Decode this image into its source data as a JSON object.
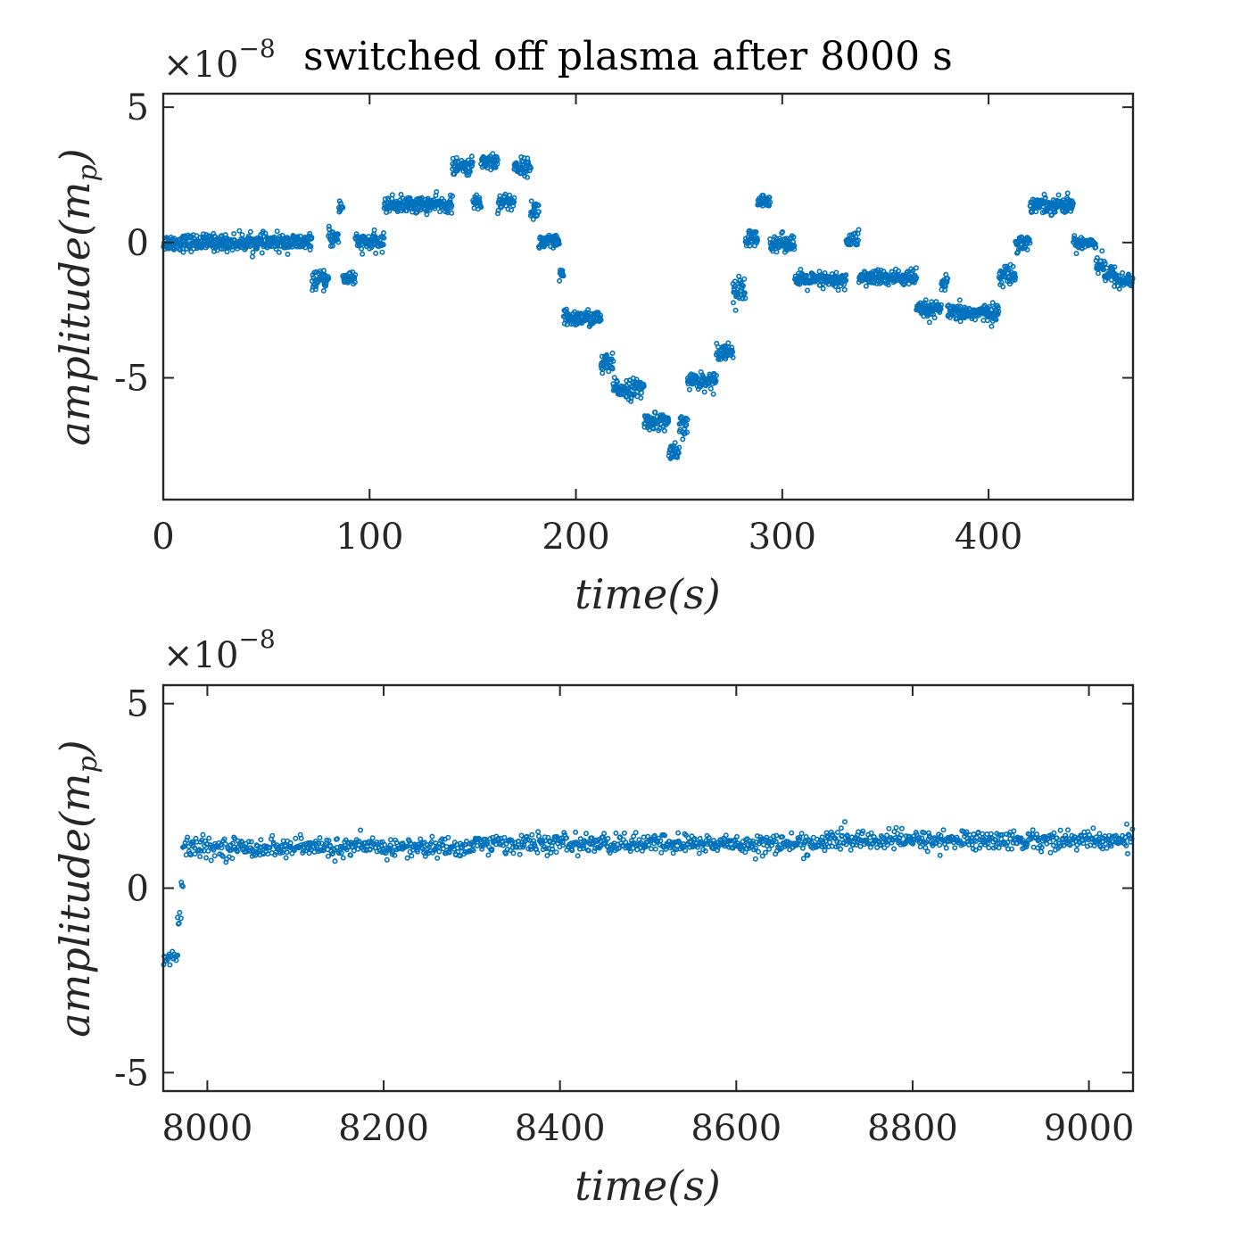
{
  "chart_data": [
    {
      "type": "scatter",
      "title": "switched off plasma after 8000 s",
      "multiplier": {
        "base": "×10",
        "exponent": "−8"
      },
      "xlabel": "time(s)",
      "ylabel": "amplitude(m_p)",
      "xlim": [
        0,
        470
      ],
      "ylim": [
        -9.5,
        5.5
      ],
      "xticks": [
        0,
        100,
        200,
        300,
        400
      ],
      "xticklabels": [
        "0",
        "100",
        "200",
        "300",
        "400"
      ],
      "yticks": [
        5,
        0,
        -5
      ],
      "yticklabels": [
        "5",
        "0",
        "-5"
      ],
      "color": "#0072BD",
      "series": [
        {
          "segments": [
            {
              "x0": 0,
              "x1": 72,
              "y": 0.0,
              "noise": 0.25
            },
            {
              "x0": 72,
              "x1": 80,
              "y": -1.4,
              "noise": 0.25
            },
            {
              "x0": 80,
              "x1": 85,
              "y": 0.2,
              "noise": 0.3
            },
            {
              "x0": 85,
              "x1": 87,
              "y": 1.3,
              "noise": 0.2
            },
            {
              "x0": 87,
              "x1": 93,
              "y": -1.3,
              "noise": 0.25
            },
            {
              "x0": 93,
              "x1": 107,
              "y": 0.0,
              "noise": 0.25
            },
            {
              "x0": 107,
              "x1": 140,
              "y": 1.4,
              "noise": 0.25
            },
            {
              "x0": 140,
              "x1": 150,
              "y": 2.8,
              "noise": 0.25
            },
            {
              "x0": 150,
              "x1": 154,
              "y": 1.5,
              "noise": 0.25
            },
            {
              "x0": 154,
              "x1": 162,
              "y": 3.0,
              "noise": 0.3
            },
            {
              "x0": 162,
              "x1": 170,
              "y": 1.5,
              "noise": 0.25
            },
            {
              "x0": 170,
              "x1": 178,
              "y": 2.8,
              "noise": 0.25
            },
            {
              "x0": 178,
              "x1": 182,
              "y": 1.2,
              "noise": 0.3
            },
            {
              "x0": 182,
              "x1": 192,
              "y": 0.0,
              "noise": 0.25
            },
            {
              "x0": 192,
              "x1": 194,
              "y": -1.2,
              "noise": 0.2
            },
            {
              "x0": 194,
              "x1": 212,
              "y": -2.8,
              "noise": 0.25
            },
            {
              "x0": 212,
              "x1": 218,
              "y": -4.5,
              "noise": 0.3
            },
            {
              "x0": 218,
              "x1": 233,
              "y": -5.4,
              "noise": 0.3
            },
            {
              "x0": 233,
              "x1": 245,
              "y": -6.6,
              "noise": 0.25
            },
            {
              "x0": 245,
              "x1": 250,
              "y": -7.8,
              "noise": 0.3
            },
            {
              "x0": 250,
              "x1": 254,
              "y": -6.8,
              "noise": 0.3
            },
            {
              "x0": 254,
              "x1": 268,
              "y": -5.1,
              "noise": 0.25
            },
            {
              "x0": 268,
              "x1": 276,
              "y": -4.0,
              "noise": 0.25
            },
            {
              "x0": 276,
              "x1": 282,
              "y": -1.8,
              "noise": 0.4
            },
            {
              "x0": 282,
              "x1": 288,
              "y": 0.1,
              "noise": 0.3
            },
            {
              "x0": 288,
              "x1": 294,
              "y": 1.5,
              "noise": 0.2
            },
            {
              "x0": 294,
              "x1": 306,
              "y": 0.0,
              "noise": 0.25
            },
            {
              "x0": 306,
              "x1": 331,
              "y": -1.4,
              "noise": 0.25
            },
            {
              "x0": 331,
              "x1": 337,
              "y": 0.1,
              "noise": 0.25
            },
            {
              "x0": 337,
              "x1": 365,
              "y": -1.3,
              "noise": 0.25
            },
            {
              "x0": 365,
              "x1": 377,
              "y": -2.5,
              "noise": 0.25
            },
            {
              "x0": 377,
              "x1": 380,
              "y": -1.5,
              "noise": 0.2
            },
            {
              "x0": 380,
              "x1": 405,
              "y": -2.6,
              "noise": 0.25
            },
            {
              "x0": 405,
              "x1": 413,
              "y": -1.2,
              "noise": 0.3
            },
            {
              "x0": 413,
              "x1": 420,
              "y": 0.0,
              "noise": 0.25
            },
            {
              "x0": 420,
              "x1": 441,
              "y": 1.4,
              "noise": 0.25
            },
            {
              "x0": 441,
              "x1": 452,
              "y": 0.0,
              "noise": 0.2
            },
            {
              "x0": 452,
              "x1": 456,
              "y": -0.8,
              "noise": 0.3
            },
            {
              "x0": 456,
              "x1": 462,
              "y": -1.2,
              "noise": 0.3
            },
            {
              "x0": 462,
              "x1": 470,
              "y": -1.4,
              "noise": 0.25
            }
          ]
        }
      ]
    },
    {
      "type": "scatter",
      "title": "",
      "multiplier": {
        "base": "×10",
        "exponent": "−8"
      },
      "xlabel": "time(s)",
      "ylabel": "amplitude(m_p)",
      "xlim": [
        7950,
        9050
      ],
      "ylim": [
        -5.5,
        5.5
      ],
      "xticks": [
        8000,
        8200,
        8400,
        8600,
        8800,
        9000
      ],
      "xticklabels": [
        "8000",
        "8200",
        "8400",
        "8600",
        "8800",
        "9000"
      ],
      "yticks": [
        5,
        0,
        -5
      ],
      "yticklabels": [
        "5",
        "0",
        "-5"
      ],
      "color": "#0072BD",
      "series": [
        {
          "segments": [
            {
              "x0": 7950,
              "x1": 7966,
              "y": -1.9,
              "noise": 0.2
            },
            {
              "x0": 7966,
              "x1": 7970,
              "y": -0.8,
              "noise": 0.3
            },
            {
              "x0": 7970,
              "x1": 7972,
              "y": 0.1,
              "noise": 0.2
            },
            {
              "x0": 7972,
              "x1": 8300,
              "y": 1.1,
              "noise": 0.22
            },
            {
              "x0": 8300,
              "x1": 8700,
              "y": 1.2,
              "noise": 0.22
            },
            {
              "x0": 8700,
              "x1": 9050,
              "y": 1.3,
              "noise": 0.22
            }
          ]
        }
      ]
    }
  ]
}
